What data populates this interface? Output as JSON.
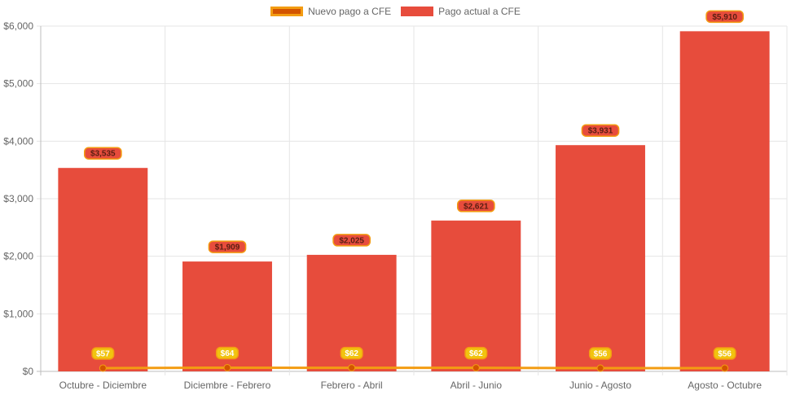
{
  "chart_data": {
    "type": "bar",
    "categories": [
      "Octubre - Diciembre",
      "Diciembre - Febrero",
      "Febrero - Abril",
      "Abril - Junio",
      "Junio - Agosto",
      "Agosto - Octubre"
    ],
    "series": [
      {
        "name": "Pago actual a CFE",
        "kind": "bar",
        "values": [
          3535,
          1909,
          2025,
          2621,
          3931,
          5910
        ],
        "labels": [
          "$3,535",
          "$1,909",
          "$2,025",
          "$2,621",
          "$3,931",
          "$5,910"
        ],
        "color": "#e74c3c",
        "label_bg": "#e74c3c"
      },
      {
        "name": "Nuevo pago a CFE",
        "kind": "line",
        "values": [
          57,
          64,
          62,
          62,
          56,
          56
        ],
        "labels": [
          "$57",
          "$64",
          "$62",
          "$62",
          "$56",
          "$56"
        ],
        "color": "#f39c12",
        "fill": "#d35400",
        "label_bg": "#f1c40f"
      }
    ],
    "y_ticks": [
      "$0",
      "$1,000",
      "$2,000",
      "$3,000",
      "$4,000",
      "$5,000",
      "$6,000"
    ],
    "ylim": [
      0,
      6000
    ],
    "grid": true,
    "legend_position": "top-center"
  },
  "legend": {
    "line_label": "Nuevo pago a CFE",
    "bar_label": "Pago actual a CFE"
  }
}
